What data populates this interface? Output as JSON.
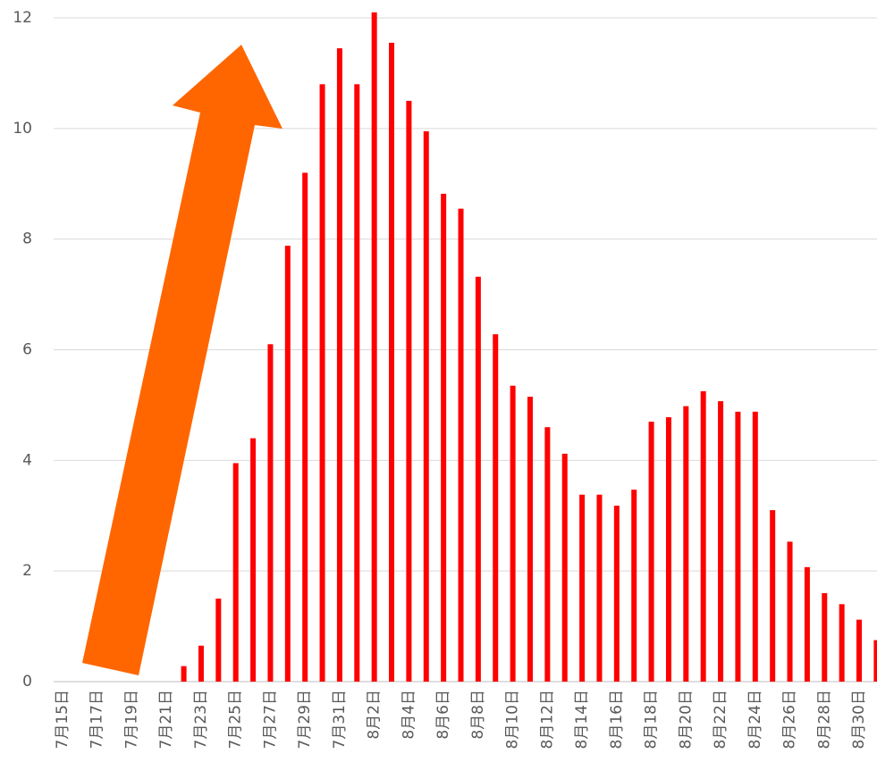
{
  "chart_data": {
    "type": "bar",
    "categories": [
      "7月15日",
      null,
      "7月17日",
      null,
      "7月19日",
      null,
      "7月21日",
      null,
      "7月23日",
      null,
      "7月25日",
      null,
      "7月27日",
      null,
      "7月29日",
      null,
      "7月31日",
      null,
      "8月2日",
      null,
      "8月4日",
      null,
      "8月6日",
      null,
      "8月8日",
      null,
      "8月10日",
      null,
      "8月12日",
      null,
      "8月14日",
      null,
      "8月16日",
      null,
      "8月18日",
      null,
      "8月20日",
      null,
      "8月22日",
      null,
      "8月24日",
      null,
      "8月26日",
      null,
      "8月28日",
      null,
      "8月30日",
      null
    ],
    "values": [
      0,
      0,
      0,
      0,
      0,
      0,
      0,
      0.28,
      0.65,
      1.5,
      3.95,
      4.4,
      6.1,
      7.88,
      9.2,
      10.8,
      11.45,
      10.8,
      12.1,
      11.55,
      10.5,
      9.95,
      8.82,
      8.55,
      7.32,
      6.28,
      5.35,
      5.15,
      4.6,
      4.12,
      3.38,
      3.38,
      3.18,
      3.47,
      4.7,
      4.78,
      4.98,
      5.25,
      5.07,
      4.88,
      4.88,
      3.1,
      2.53,
      2.07,
      1.6,
      1.4,
      1.12,
      0.75
    ],
    "color": "#ff0000",
    "ylim": [
      0,
      12
    ],
    "yticks": [
      0,
      2,
      4,
      6,
      8,
      10,
      12
    ],
    "grid": true
  }
}
